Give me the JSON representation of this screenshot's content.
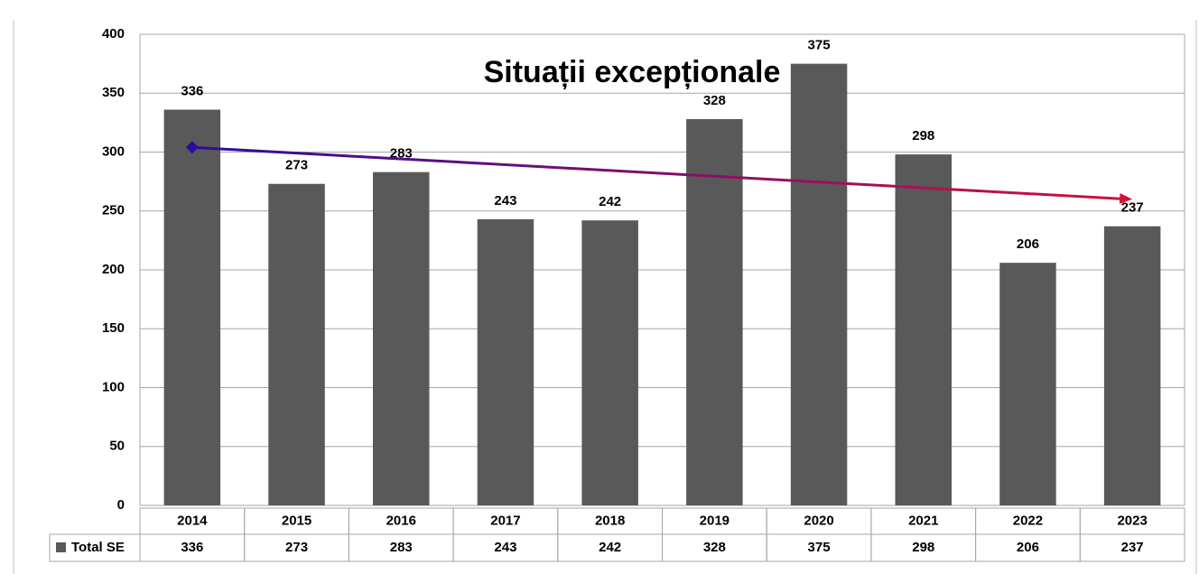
{
  "chart_data": {
    "type": "bar",
    "title": "Situații excepționale",
    "categories": [
      "2014",
      "2015",
      "2016",
      "2017",
      "2018",
      "2019",
      "2020",
      "2021",
      "2022",
      "2023"
    ],
    "series": [
      {
        "name": "Total SE",
        "color": "#595959",
        "values": [
          336,
          273,
          283,
          243,
          242,
          328,
          375,
          298,
          206,
          237
        ]
      }
    ],
    "ylim": [
      0,
      400
    ],
    "yticks": [
      0,
      50,
      100,
      150,
      200,
      250,
      300,
      350,
      400
    ],
    "grid": true,
    "trend": {
      "start": 304,
      "end": 260,
      "colors": [
        "#2e0c9c",
        "#d4103c"
      ]
    },
    "data_table": true
  }
}
